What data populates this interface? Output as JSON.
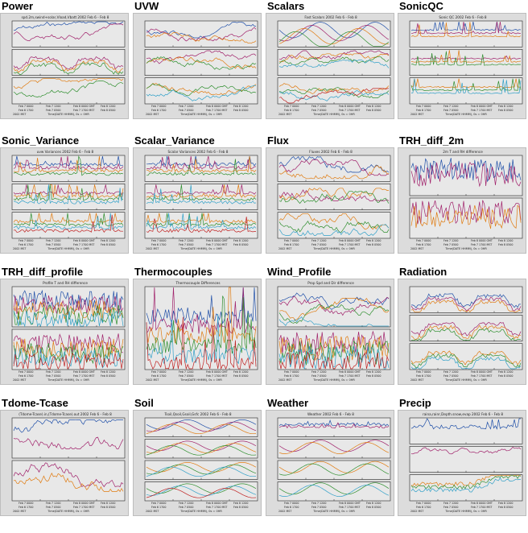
{
  "colors": {
    "panel_bg": "#dcdcdc",
    "plot_bg": "#e8e8e8",
    "line1": "#1f4fa8",
    "line2": "#a0206a",
    "line3": "#e07b10",
    "line4": "#2f8f2f",
    "line5": "#30a0c8",
    "line6": "#c02020",
    "ink": "#222222"
  },
  "thumbnails": [
    {
      "title": "Power",
      "caption": "spd.2m,swind+solar,Vload,Vbatt 2002 Feb 6 - Feb 8",
      "panels": 3,
      "style": "power"
    },
    {
      "title": "UVW",
      "caption": "",
      "panels": 3,
      "style": "uvw"
    },
    {
      "title": "Scalars",
      "caption": "Fast Scalars 2002 Feb 6 - Feb 8",
      "panels": 3,
      "style": "scalars"
    },
    {
      "title": "SonicQC",
      "caption": "Sonic QC 2002 Feb 6 - Feb 8",
      "panels": 3,
      "style": "spikes"
    },
    {
      "title": "Sonic_Variance",
      "caption": "uvw Variances 2002 Feb 6 - Feb 8",
      "panels": 3,
      "style": "variance"
    },
    {
      "title": "Scalar_Variance",
      "caption": "Scalar Variances 2002 Feb 6 - Feb 8",
      "panels": 3,
      "style": "variance"
    },
    {
      "title": "Flux",
      "caption": "Fluxes 2002 Feb 6 - Feb 8",
      "panels": 3,
      "style": "flux"
    },
    {
      "title": "TRH_diff_2m",
      "caption": "2m T and RH difference",
      "panels": 2,
      "style": "noise"
    },
    {
      "title": "TRH_diff_profile",
      "caption": "Profile T and RH difference",
      "panels": 2,
      "style": "profile"
    },
    {
      "title": "Thermocouples",
      "caption": "Thermocouple Differences",
      "panels": 1,
      "style": "thermo"
    },
    {
      "title": "Wind_Profile",
      "caption": "Prop Spd and Dir difference",
      "panels": 2,
      "style": "wind"
    },
    {
      "title": "Radiation",
      "caption": "",
      "panels": 3,
      "style": "radiation"
    },
    {
      "title": "Tdome-Tcase",
      "caption": "(Tdome-Tcase).in,(Tdome-Tcase).out 2002 Feb 6 - Feb 8",
      "panels": 2,
      "style": "tdome"
    },
    {
      "title": "Soil",
      "caption": "Tsoil,Qsoil,Gsoil,Gsfc 2002 Feb 6 - Feb 8",
      "panels": 4,
      "style": "soil"
    },
    {
      "title": "Weather",
      "caption": "Weather 2002 Feb 6 - Feb 8",
      "panels": 4,
      "style": "weather"
    },
    {
      "title": "Precip",
      "caption": "raina,rainr,Depth.snow,evap 2002 Feb 6 - Feb 8",
      "panels": 3,
      "style": "precip"
    }
  ],
  "axis_text": {
    "ticks": [
      "Feb 7 0000",
      "Feb 7 1200",
      "Feb 8 0000 GMT",
      "Feb 8 1200"
    ],
    "ticks_local": [
      "Feb 6 1700",
      "Feb 7 0500",
      "Feb 7 1700 MST",
      "Feb 8 0500"
    ],
    "xlabel": "Time(DATE HHMM), 0s = 0HR",
    "year_label": "2002 MST"
  }
}
